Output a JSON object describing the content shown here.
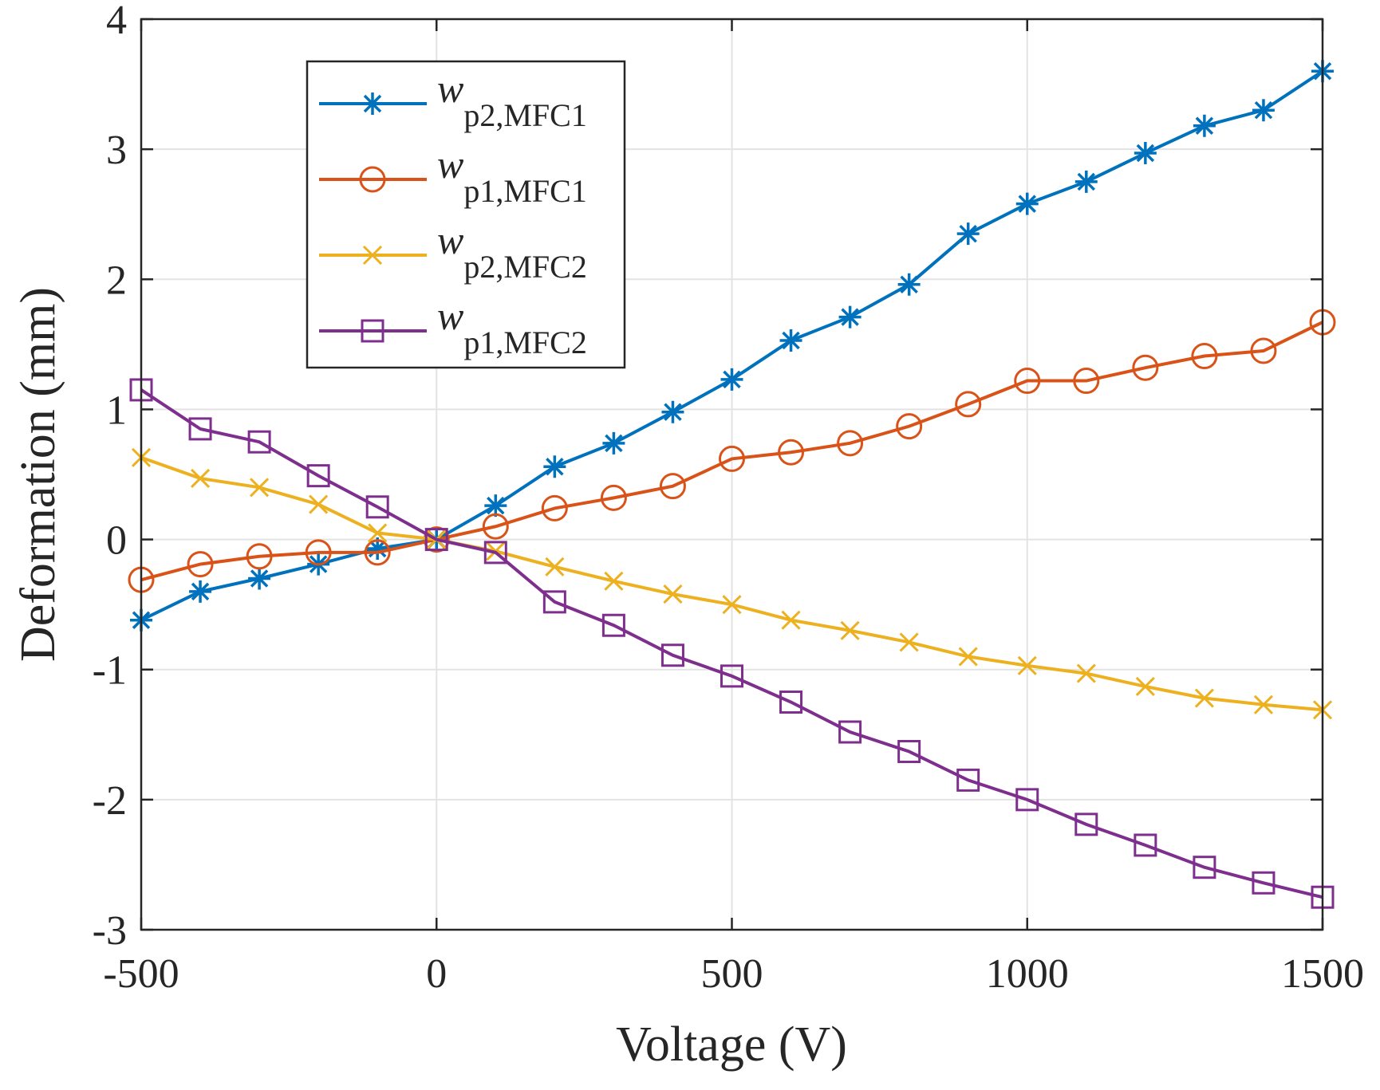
{
  "chart_data": {
    "type": "line",
    "title": "",
    "xlabel": "Voltage (V)",
    "ylabel": "Deformation (mm)",
    "xlim": [
      -500,
      1500
    ],
    "ylim": [
      -3,
      4
    ],
    "xticks": [
      -500,
      0,
      500,
      1000,
      1500
    ],
    "yticks": [
      -3,
      -2,
      -1,
      0,
      1,
      2,
      3,
      4
    ],
    "grid": true,
    "legend_position": "top-left",
    "x": [
      -500,
      -400,
      -300,
      -200,
      -100,
      0,
      100,
      200,
      300,
      400,
      500,
      600,
      700,
      800,
      900,
      1000,
      1100,
      1200,
      1300,
      1400,
      1500
    ],
    "series": [
      {
        "name": "w",
        "sub": "p2,MFC1",
        "color": "#0072BD",
        "marker": "asterisk",
        "values": [
          -0.62,
          -0.4,
          -0.3,
          -0.19,
          -0.07,
          0,
          0.26,
          0.56,
          0.74,
          0.98,
          1.23,
          1.53,
          1.71,
          1.96,
          2.35,
          2.58,
          2.75,
          2.97,
          3.18,
          3.3,
          3.6
        ]
      },
      {
        "name": "w",
        "sub": "p1,MFC1",
        "color": "#D95319",
        "marker": "circle",
        "values": [
          -0.31,
          -0.19,
          -0.13,
          -0.1,
          -0.1,
          0,
          0.1,
          0.24,
          0.32,
          0.41,
          0.62,
          0.67,
          0.74,
          0.87,
          1.04,
          1.22,
          1.22,
          1.32,
          1.41,
          1.45,
          1.67
        ]
      },
      {
        "name": "w",
        "sub": "p2,MFC2",
        "color": "#EDB120",
        "marker": "x",
        "values": [
          0.63,
          0.47,
          0.4,
          0.27,
          0.05,
          0,
          -0.09,
          -0.21,
          -0.32,
          -0.42,
          -0.5,
          -0.62,
          -0.7,
          -0.79,
          -0.9,
          -0.97,
          -1.03,
          -1.13,
          -1.22,
          -1.27,
          -1.31
        ]
      },
      {
        "name": "w",
        "sub": "p1,MFC2",
        "color": "#7E2F8E",
        "marker": "square",
        "values": [
          1.15,
          0.85,
          0.75,
          0.49,
          0.25,
          0,
          -0.1,
          -0.48,
          -0.66,
          -0.89,
          -1.05,
          -1.25,
          -1.48,
          -1.63,
          -1.85,
          -2.0,
          -2.19,
          -2.35,
          -2.52,
          -2.64,
          -2.75
        ]
      }
    ]
  }
}
